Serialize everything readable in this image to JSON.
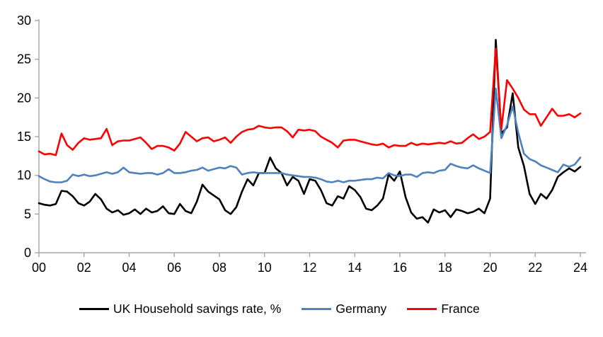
{
  "chart_data": {
    "type": "line",
    "title": "",
    "x_axis": {
      "tick_labels": [
        "00",
        "02",
        "04",
        "06",
        "08",
        "10",
        "12",
        "14",
        "16",
        "18",
        "20",
        "22",
        "24"
      ],
      "note": "quarterly observations from 2000 to 2024"
    },
    "y_axis": {
      "min": 0,
      "max": 30,
      "tick_step": 5,
      "tick_labels": [
        "0",
        "5",
        "10",
        "15",
        "20",
        "25",
        "30"
      ]
    },
    "grid": "off",
    "legend_position": "bottom",
    "axis_color": "#a6a6a6",
    "series": [
      {
        "id": "uk",
        "name": "UK Household savings rate, %",
        "color": "#000000",
        "values": [
          6.4,
          6.2,
          6.1,
          6.3,
          8.0,
          7.9,
          7.3,
          6.4,
          6.1,
          6.6,
          7.6,
          6.9,
          5.7,
          5.2,
          5.5,
          4.9,
          5.1,
          5.6,
          5.0,
          5.7,
          5.2,
          5.4,
          6.0,
          5.1,
          5.0,
          6.3,
          5.4,
          5.1,
          6.6,
          8.8,
          7.9,
          7.4,
          6.9,
          5.5,
          5.0,
          5.9,
          7.9,
          9.5,
          8.7,
          10.3,
          10.3,
          12.3,
          10.9,
          10.3,
          8.7,
          9.8,
          9.3,
          7.6,
          9.5,
          9.3,
          8.1,
          6.4,
          6.1,
          7.3,
          7.0,
          8.6,
          8.1,
          7.2,
          5.7,
          5.5,
          6.1,
          7.0,
          10.1,
          9.3,
          10.5,
          7.2,
          5.2,
          4.4,
          4.6,
          3.9,
          5.6,
          5.2,
          5.5,
          4.6,
          5.6,
          5.4,
          5.1,
          5.3,
          5.7,
          5.1,
          7.0,
          27.5,
          15.4,
          16.2,
          20.6,
          13.6,
          11.2,
          7.6,
          6.3,
          7.6,
          7.0,
          8.1,
          9.8,
          10.4,
          10.9,
          10.5,
          11.1
        ]
      },
      {
        "id": "germany",
        "name": "Germany",
        "color": "#4f81bd",
        "values": [
          9.9,
          9.5,
          9.2,
          9.1,
          9.1,
          9.3,
          10.1,
          9.9,
          10.1,
          9.9,
          10.0,
          10.2,
          10.4,
          10.2,
          10.4,
          11.0,
          10.4,
          10.3,
          10.2,
          10.3,
          10.3,
          10.1,
          10.3,
          10.8,
          10.3,
          10.3,
          10.4,
          10.6,
          10.7,
          11.0,
          10.6,
          10.8,
          11.0,
          10.9,
          11.2,
          11.0,
          10.1,
          10.3,
          10.4,
          10.3,
          10.3,
          10.3,
          10.3,
          10.3,
          10.1,
          10.0,
          9.9,
          9.8,
          9.8,
          9.7,
          9.5,
          9.2,
          9.1,
          9.3,
          9.1,
          9.3,
          9.3,
          9.4,
          9.5,
          9.5,
          9.7,
          9.6,
          10.3,
          10.0,
          9.9,
          10.1,
          10.1,
          9.8,
          10.3,
          10.4,
          10.3,
          10.6,
          10.7,
          11.5,
          11.2,
          11.0,
          10.9,
          11.3,
          10.9,
          10.6,
          10.3,
          21.2,
          14.8,
          16.5,
          18.9,
          15.5,
          12.8,
          12.1,
          11.8,
          11.3,
          11.0,
          10.7,
          10.4,
          11.4,
          11.1,
          11.4,
          12.3
        ]
      },
      {
        "id": "france",
        "name": "France",
        "color": "#ff0000",
        "values": [
          13.1,
          12.7,
          12.8,
          12.6,
          15.4,
          13.9,
          13.3,
          14.2,
          14.8,
          14.6,
          14.7,
          14.8,
          16.0,
          13.9,
          14.4,
          14.5,
          14.5,
          14.7,
          14.9,
          14.2,
          13.4,
          13.8,
          13.8,
          13.6,
          13.2,
          14.1,
          15.6,
          15.0,
          14.4,
          14.8,
          14.9,
          14.4,
          14.6,
          14.9,
          14.2,
          15.0,
          15.6,
          15.9,
          16.0,
          16.4,
          16.2,
          16.1,
          16.2,
          16.2,
          15.7,
          14.9,
          15.9,
          15.8,
          15.9,
          15.7,
          15.0,
          14.6,
          14.2,
          13.6,
          14.5,
          14.6,
          14.6,
          14.4,
          14.2,
          14.0,
          13.9,
          14.1,
          13.6,
          13.9,
          13.8,
          13.8,
          14.2,
          13.9,
          14.1,
          14.0,
          14.1,
          14.2,
          14.1,
          14.4,
          14.1,
          14.2,
          14.8,
          15.3,
          14.7,
          15.0,
          15.6,
          26.4,
          16.0,
          22.3,
          21.2,
          20.0,
          18.5,
          17.9,
          17.9,
          16.4,
          17.5,
          18.6,
          17.7,
          17.7,
          17.9,
          17.5,
          18.0
        ]
      }
    ]
  }
}
